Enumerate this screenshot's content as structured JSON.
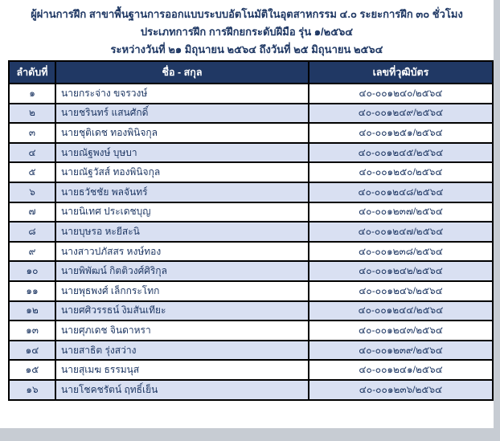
{
  "header": {
    "line1": "ผู้ผ่านการฝึก สาขาพื้นฐานการออกแบบระบบอัตโนมัติในอุตสาหกรรม ๔.๐  ระยะการฝึก ๓๐ ชั่วโมง",
    "line2": "ประเภทการฝึก การฝึกยกระดับฝีมือ รุ่น ๑/๒๕๖๔",
    "line3": "ระหว่างวันที่ ๒๑ มิถุนายน ๒๕๖๔ ถึงวันที่ ๒๕ มิถุนายน ๒๕๖๔"
  },
  "table": {
    "columns": [
      "ลำดับที่",
      "ชื่อ - สกุล",
      "เลขที่วุฒิบัตร"
    ],
    "rows": [
      {
        "no": "๑",
        "name": "นายกระจ่าง ขจรวงษ์",
        "cert": "๔๐-๐๐๑๒๔๐/๒๕๖๔"
      },
      {
        "no": "๒",
        "name": "นายชรินทร์ แสนศักดิ์",
        "cert": "๔๐-๐๐๑๒๔๙/๒๕๖๔"
      },
      {
        "no": "๓",
        "name": "นายชุติเดช ทองพินิจกุล",
        "cert": "๔๐-๐๐๑๒๕๑/๒๕๖๔"
      },
      {
        "no": "๔",
        "name": "นายณัฐพงษ์ บุษบา",
        "cert": "๔๐-๐๐๑๒๔๕/๒๕๖๔"
      },
      {
        "no": "๕",
        "name": "นายณัฐวัสส์ ทองพินิจกุล",
        "cert": "๔๐-๐๐๑๒๕๐/๒๕๖๔"
      },
      {
        "no": "๖",
        "name": "นายธวัชชัย พลจันทร์",
        "cert": "๔๐-๐๐๑๒๔๘/๒๕๖๔"
      },
      {
        "no": "๗",
        "name": "นายนิเทศ ประเดชบุญ",
        "cert": "๔๐-๐๐๑๒๓๗/๒๕๖๔"
      },
      {
        "no": "๘",
        "name": "นายบุษรอ หะยีสะนิ",
        "cert": "๔๐-๐๐๑๒๔๗/๒๕๖๔"
      },
      {
        "no": "๙",
        "name": "นางสาวปภัสสร หงษ์ทอง",
        "cert": "๔๐-๐๐๑๒๓๘/๒๕๖๔"
      },
      {
        "no": "๑๐",
        "name": "นายพิพัฒน์ กิตติวงศ์ศิริกุล",
        "cert": "๔๐-๐๐๑๒๔๒/๒๕๖๔"
      },
      {
        "no": "๑๑",
        "name": "นายพุธพงศ์ เล็กกระโทก",
        "cert": "๔๐-๐๐๑๒๔๖/๒๕๖๔"
      },
      {
        "no": "๑๒",
        "name": "นายศศิวรรธน์ งิมสันเทียะ",
        "cert": "๔๐-๐๐๑๒๔๔/๒๕๖๔"
      },
      {
        "no": "๑๓",
        "name": "นายศุภเดช จินดาหรา",
        "cert": "๔๐-๐๐๑๒๔๓/๒๕๖๔"
      },
      {
        "no": "๑๔",
        "name": "นายสาธิต รุ่งสว่าง",
        "cert": "๔๐-๐๐๑๒๓๙/๒๕๖๔"
      },
      {
        "no": "๑๕",
        "name": "นายสุเมฆ ธรรมนุส",
        "cert": "๔๐-๐๐๑๒๔๑/๒๕๖๔"
      },
      {
        "no": "๑๖",
        "name": "นายโชคชรัตน์ ฤทธิ์เย็น",
        "cert": "๔๐-๐๐๑๒๓๖/๒๕๖๔"
      }
    ]
  },
  "colors": {
    "accent_navy": "#1f3864",
    "header_bg": "#203864",
    "row_shade": "#d9e0f2",
    "grid_border": "#000000",
    "page_bg": "#ffffff",
    "surround_bg": "#c7ccd3"
  }
}
